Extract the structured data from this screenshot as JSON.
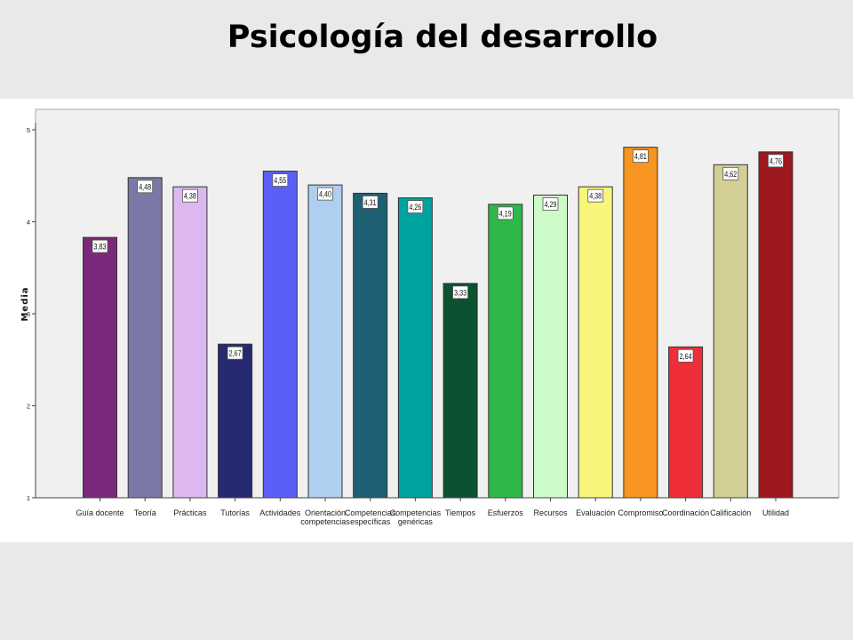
{
  "title": "Psicología del desarrollo",
  "chart_data": {
    "type": "bar",
    "ylabel": "Media",
    "xlabel": "",
    "ylim": [
      1,
      5
    ],
    "yticks": [
      "1",
      "2",
      "3",
      "4",
      "5"
    ],
    "grid": false,
    "categories": [
      [
        "Guía docente"
      ],
      [
        "Teoría"
      ],
      [
        "Prácticas"
      ],
      [
        "Tutorías"
      ],
      [
        "Actividades"
      ],
      [
        "Orientación",
        "competencias"
      ],
      [
        "Competencias",
        "específicas"
      ],
      [
        "Competencias",
        "genéricas"
      ],
      [
        "Tiempos"
      ],
      [
        "Esfuerzos"
      ],
      [
        "Recursos"
      ],
      [
        "Evaluación"
      ],
      [
        "Compromiso"
      ],
      [
        "Coordinación"
      ],
      [
        "Calificación"
      ],
      [
        "Utilidad"
      ]
    ],
    "values": [
      3.83,
      4.48,
      4.38,
      2.67,
      4.55,
      4.4,
      4.31,
      4.26,
      3.33,
      4.19,
      4.29,
      4.38,
      4.81,
      2.64,
      4.62,
      4.76
    ],
    "value_labels": [
      "3,83",
      "4,48",
      "4,38",
      "2,67",
      "4,55",
      "4,40",
      "4,31",
      "4,26",
      "3,33",
      "4,19",
      "4,29",
      "4,38",
      "4,81",
      "2,64",
      "4,62",
      "4,76"
    ],
    "colors": [
      "#7b2a7b",
      "#7a79a8",
      "#ddb8f0",
      "#262a70",
      "#5b5ff7",
      "#aecff0",
      "#1d5f73",
      "#00a3a0",
      "#0c5230",
      "#2fb84a",
      "#cdfbc7",
      "#f7f57a",
      "#f79520",
      "#ee2e38",
      "#d3ce95",
      "#9e1820"
    ]
  }
}
